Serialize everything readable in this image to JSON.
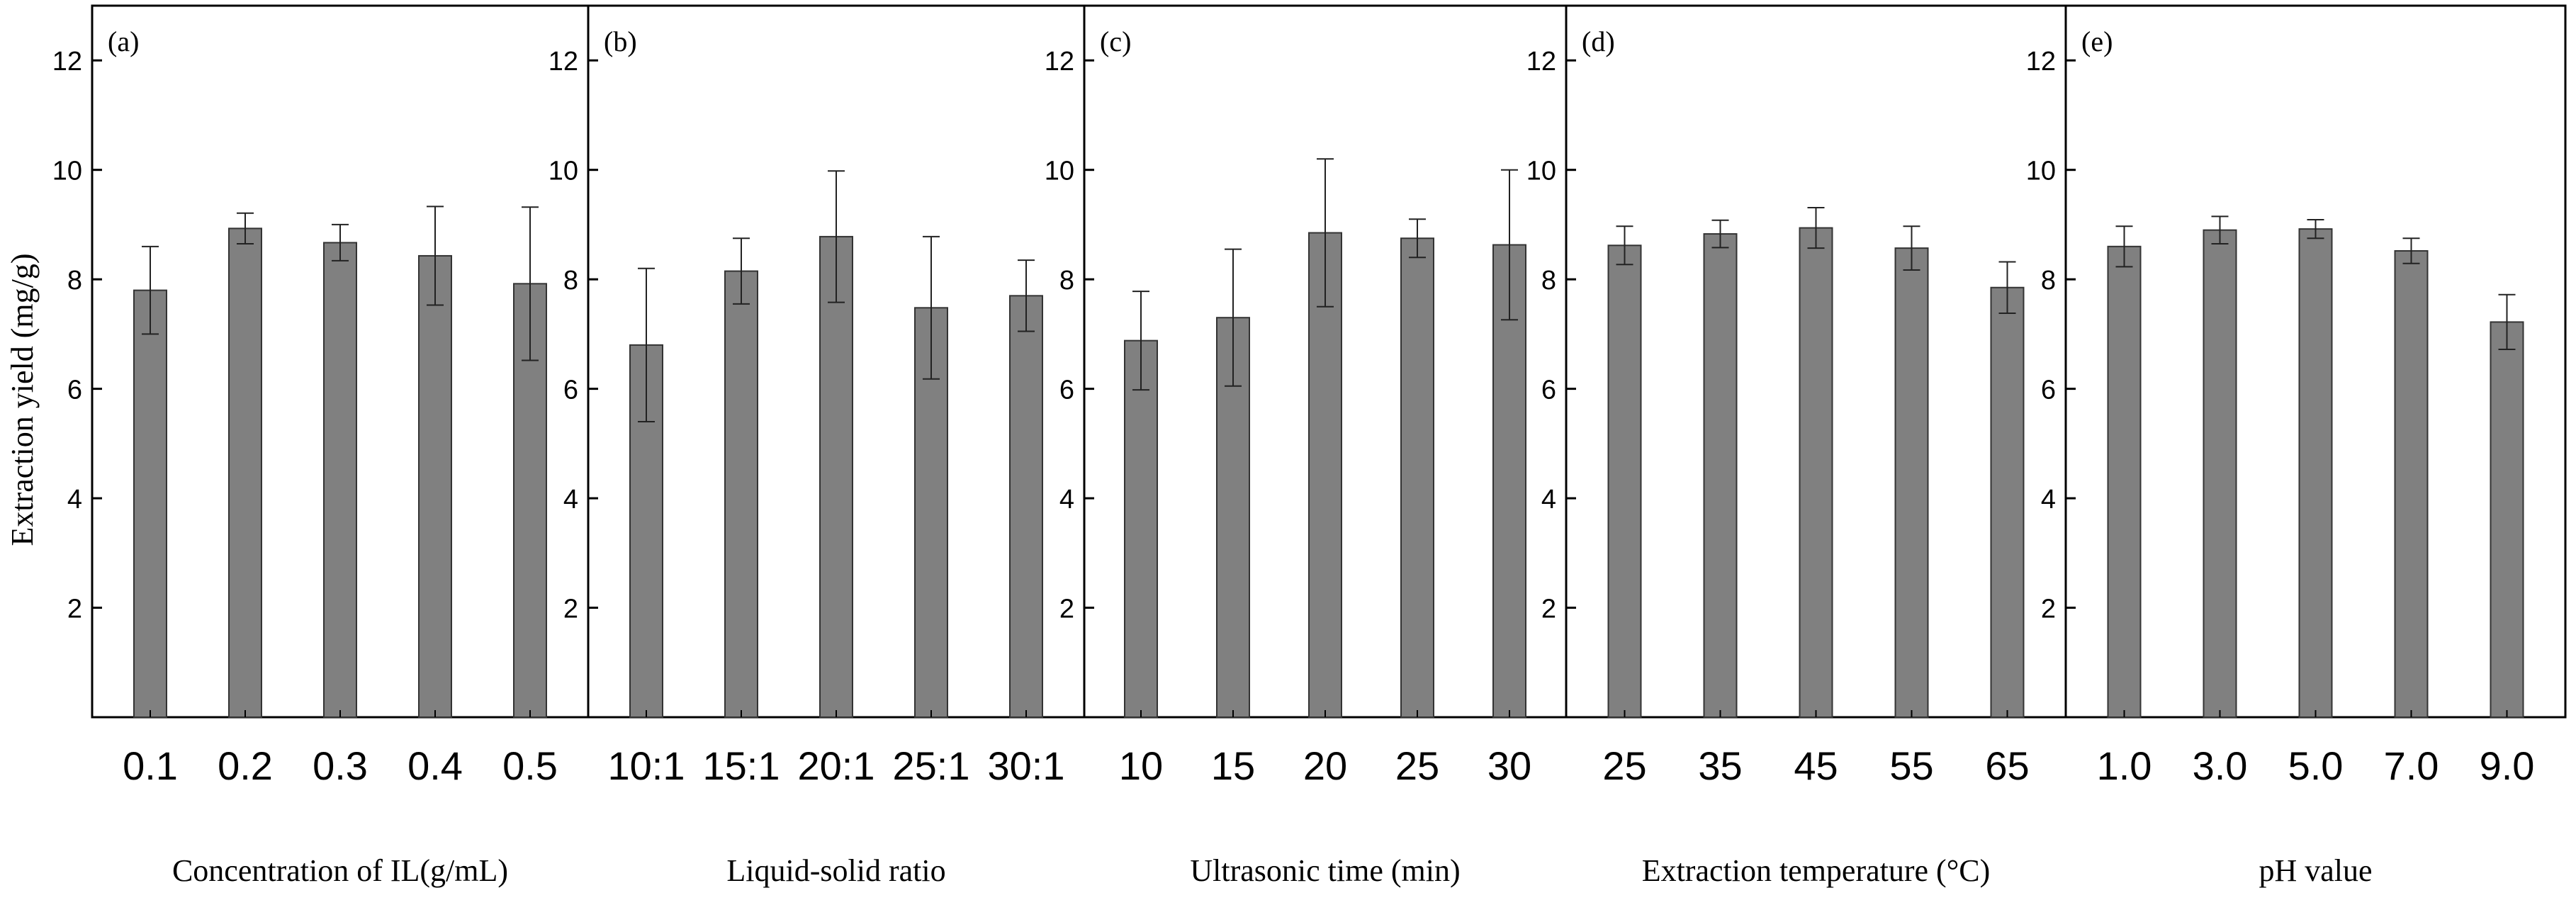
{
  "ylabel": "Extraction yield (mg/g)",
  "ylim": [
    0,
    13
  ],
  "yticks": [
    2,
    4,
    6,
    8,
    10,
    12
  ],
  "colors": {
    "bar": "#808080",
    "bar_stroke": "#333333",
    "axis": "#000000"
  },
  "chart_data": [
    {
      "type": "bar",
      "panel_label": "(a)",
      "xlabel": "Concentration of IL(g/mL)",
      "categories": [
        "0.1",
        "0.2",
        "0.3",
        "0.4",
        "0.5"
      ],
      "values": [
        7.8,
        8.93,
        8.67,
        8.43,
        7.92
      ],
      "errors": [
        0.8,
        0.28,
        0.33,
        0.9,
        1.4
      ]
    },
    {
      "type": "bar",
      "panel_label": "(b)",
      "xlabel": "Liquid-solid ratio",
      "categories": [
        "10:1",
        "15:1",
        "20:1",
        "25:1",
        "30:1"
      ],
      "values": [
        6.8,
        8.15,
        8.78,
        7.48,
        7.7
      ],
      "errors": [
        1.4,
        0.6,
        1.2,
        1.3,
        0.65
      ]
    },
    {
      "type": "bar",
      "panel_label": "(c)",
      "xlabel": "Ultrasonic time (min)",
      "categories": [
        "10",
        "15",
        "20",
        "25",
        "30"
      ],
      "values": [
        6.88,
        7.3,
        8.85,
        8.75,
        8.63
      ],
      "errors": [
        0.9,
        1.25,
        1.35,
        0.35,
        1.37
      ]
    },
    {
      "type": "bar",
      "panel_label": "(d)",
      "xlabel": "Extraction temperature (°C)",
      "categories": [
        "25",
        "35",
        "45",
        "55",
        "65"
      ],
      "values": [
        8.62,
        8.83,
        8.94,
        8.57,
        7.85
      ],
      "errors": [
        0.35,
        0.25,
        0.37,
        0.4,
        0.47
      ]
    },
    {
      "type": "bar",
      "panel_label": "(e)",
      "xlabel": "pH value",
      "categories": [
        "1.0",
        "3.0",
        "5.0",
        "7.0",
        "9.0"
      ],
      "values": [
        8.6,
        8.9,
        8.92,
        8.52,
        7.22
      ],
      "errors": [
        0.37,
        0.25,
        0.17,
        0.23,
        0.5
      ]
    }
  ]
}
